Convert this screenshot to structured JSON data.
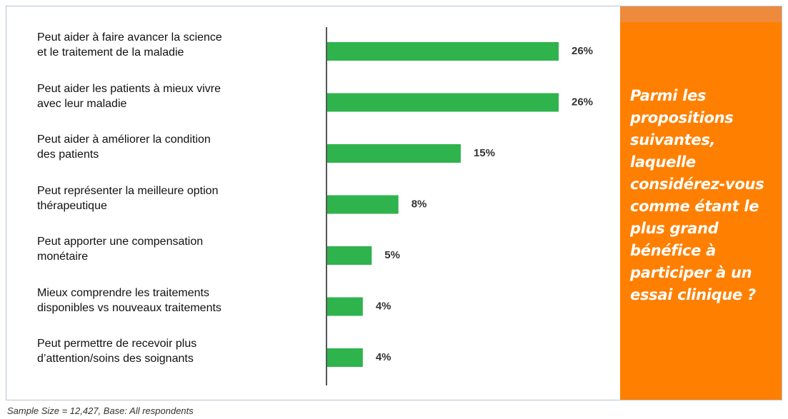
{
  "chart_data": {
    "type": "bar",
    "orientation": "horizontal",
    "categories": [
      "Peut aider à faire avancer la science\net le traitement de la maladie",
      "Peut aider les patients à mieux vivre\navec leur maladie",
      "Peut aider à améliorer la condition\ndes patients",
      "Peut représenter la meilleure option\nthérapeutique",
      "Peut apporter une compensation\nmonétaire",
      "Mieux comprendre les traitements\ndisponibles vs nouveaux traitements",
      "Peut permettre de recevoir plus\nd’attention/soins des soignants"
    ],
    "values": [
      26,
      26,
      15,
      8,
      5,
      4,
      4
    ],
    "value_labels": [
      "26%",
      "26%",
      "15%",
      "8%",
      "5%",
      "4%",
      "4%"
    ],
    "color": "#2fb34c",
    "question": "Parmi les\npropositions\nsuivantes,\nlaquelle\nconsidérez-vous\ncomme étant le\nplus grand\nbénéfice à\nparticiper à un\nessai clinique ?",
    "footnote": "Sample Size = 12,427, Base: All respondents"
  }
}
